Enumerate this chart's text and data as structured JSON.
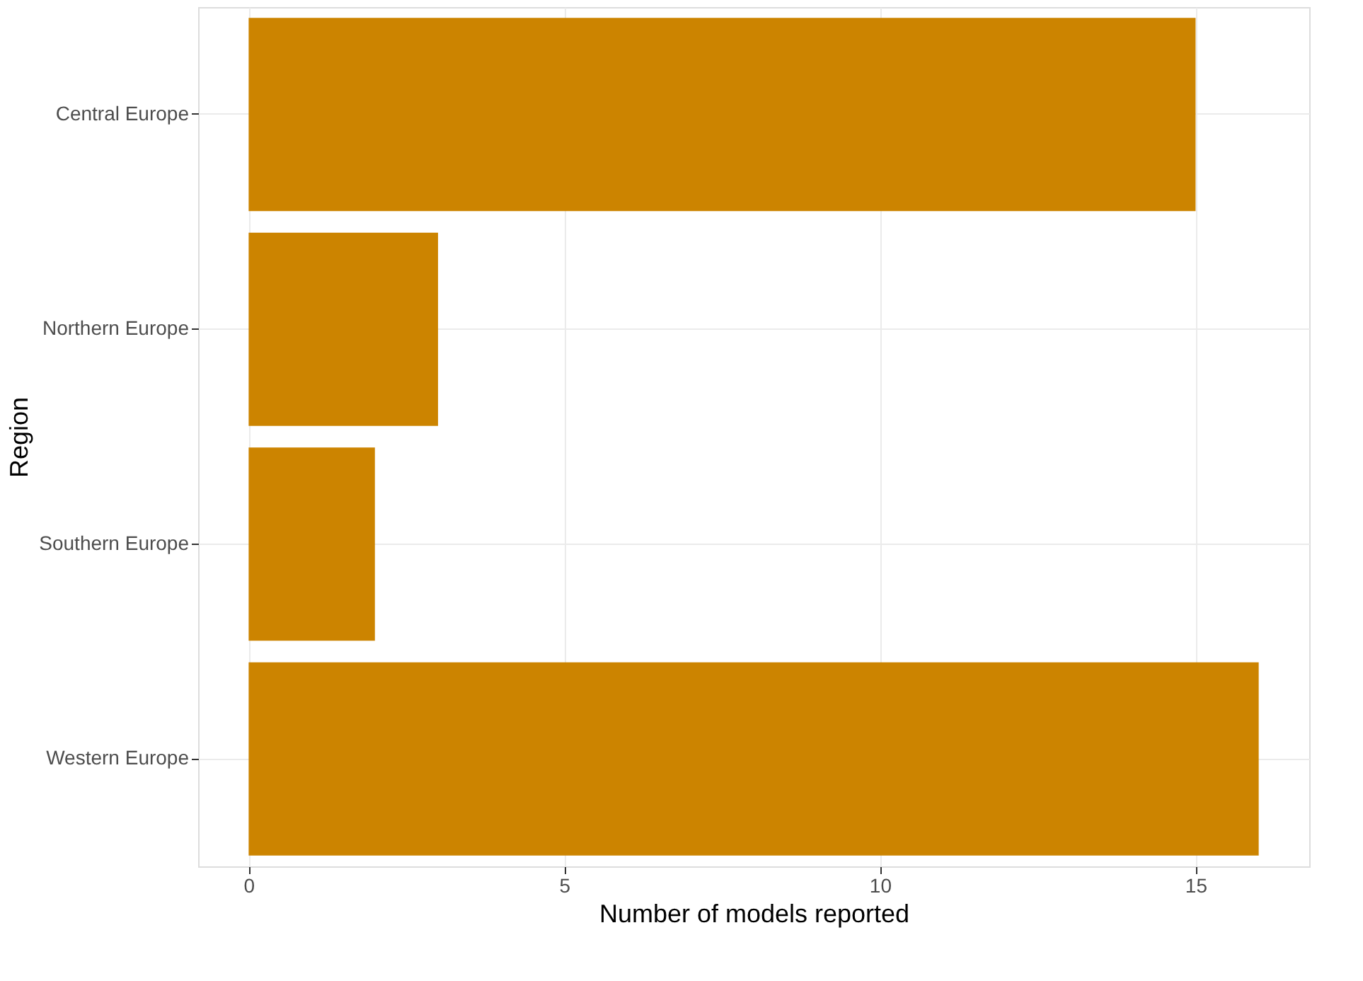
{
  "chart_data": {
    "type": "bar",
    "orientation": "horizontal",
    "xlabel": "Number of models reported",
    "ylabel": "Region",
    "categories": [
      "Central Europe",
      "Northern Europe",
      "Southern Europe",
      "Western Europe"
    ],
    "values": [
      15,
      3,
      2,
      16
    ],
    "color": "#cc8400",
    "xlim": [
      -0.8,
      16.8
    ],
    "xticks": [
      0,
      5,
      10,
      15
    ],
    "grid": true
  }
}
